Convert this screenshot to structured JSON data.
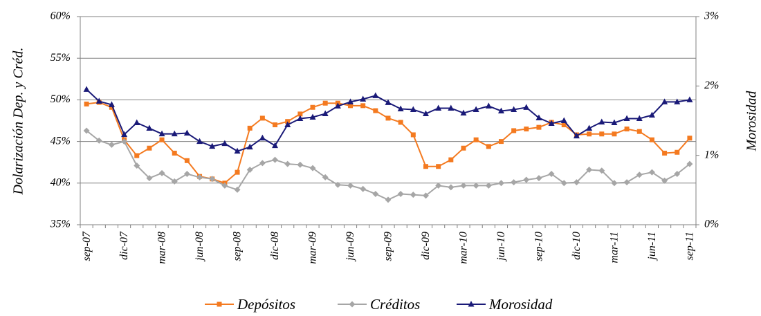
{
  "chart_data": {
    "type": "line",
    "y_label": "Dolarización Dep. y Créd.",
    "y2_label": "Morosidad",
    "categories": [
      "sep-07",
      null,
      null,
      "dic-07",
      null,
      null,
      "mar-08",
      null,
      null,
      "jun-08",
      null,
      null,
      "sep-08",
      null,
      null,
      "dic-08",
      null,
      null,
      "mar-09",
      null,
      null,
      "jun-09",
      null,
      null,
      "sep-09",
      null,
      null,
      "dic-09",
      null,
      null,
      "mar-10",
      null,
      null,
      "jun-10",
      null,
      null,
      "sep-10",
      null,
      null,
      "dic-10",
      null,
      null,
      "mar-11",
      null,
      null,
      "jun-11",
      null,
      null,
      "sep-11"
    ],
    "series": [
      {
        "name": "Depósitos",
        "color": "#f47a20",
        "marker": "square",
        "values": [
          49.5,
          49.7,
          49.1,
          45.2,
          43.3,
          44.2,
          45.2,
          43.6,
          42.7,
          40.8,
          40.5,
          40.0,
          41.3,
          46.6,
          47.8,
          47.0,
          47.4,
          48.3,
          49.1,
          49.6,
          49.6,
          49.3,
          49.3,
          48.7,
          47.8,
          47.3,
          45.8,
          42.0,
          42.0,
          42.8,
          44.2,
          45.2,
          44.4,
          45.0,
          46.3,
          46.5,
          46.7,
          47.3,
          47.0,
          45.8,
          45.9,
          45.9,
          45.9,
          46.5,
          46.2,
          45.2,
          43.6,
          43.7,
          45.4
        ]
      },
      {
        "name": "Créditos",
        "color": "#a6a6a6",
        "marker": "diamond",
        "values": [
          46.3,
          45.1,
          44.6,
          45.0,
          42.1,
          40.6,
          41.2,
          40.2,
          41.1,
          40.7,
          40.5,
          39.7,
          39.2,
          41.6,
          42.4,
          42.8,
          42.3,
          42.2,
          41.8,
          40.7,
          39.8,
          39.7,
          39.3,
          38.7,
          38.0,
          38.7,
          38.6,
          38.5,
          39.7,
          39.5,
          39.7,
          39.7,
          39.7,
          40.0,
          40.1,
          40.4,
          40.6,
          41.1,
          40.0,
          40.1,
          41.6,
          41.5,
          40.0,
          40.1,
          41.0,
          41.3,
          40.3,
          41.1,
          42.3
        ]
      },
      {
        "name": "Morosidad",
        "color": "#1a1a78",
        "marker": "triangle",
        "axis": "y2",
        "values": [
          1.95,
          1.78,
          1.73,
          1.3,
          1.47,
          1.39,
          1.31,
          1.31,
          1.32,
          1.2,
          1.13,
          1.17,
          1.06,
          1.12,
          1.25,
          1.14,
          1.44,
          1.53,
          1.55,
          1.6,
          1.71,
          1.77,
          1.81,
          1.86,
          1.76,
          1.67,
          1.66,
          1.6,
          1.68,
          1.68,
          1.61,
          1.66,
          1.71,
          1.64,
          1.66,
          1.69,
          1.54,
          1.46,
          1.5,
          1.28,
          1.39,
          1.48,
          1.47,
          1.53,
          1.53,
          1.58,
          1.77,
          1.77,
          1.8
        ]
      }
    ],
    "ylim": [
      35,
      60
    ],
    "yticks": [
      {
        "value": 35,
        "label": "35%"
      },
      {
        "value": 40,
        "label": "40%"
      },
      {
        "value": 45,
        "label": "45%"
      },
      {
        "value": 50,
        "label": "50%"
      },
      {
        "value": 55,
        "label": "55%"
      },
      {
        "value": 60,
        "label": "60%"
      }
    ],
    "y2lim": [
      0,
      3
    ],
    "y2ticks": [
      {
        "value": 0,
        "label": "0%"
      },
      {
        "value": 1,
        "label": "1%"
      },
      {
        "value": 2,
        "label": "2%"
      },
      {
        "value": 3,
        "label": "3%"
      }
    ],
    "grid": true
  }
}
